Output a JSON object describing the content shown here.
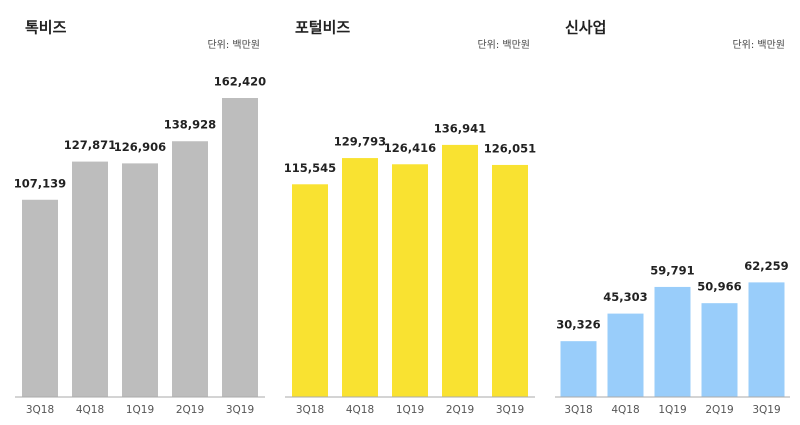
{
  "chart_data": [
    {
      "type": "bar",
      "title": "톡비즈",
      "subtitle": "단위: 백만원",
      "categories": [
        "3Q18",
        "4Q18",
        "1Q19",
        "2Q19",
        "3Q19"
      ],
      "values": [
        107139,
        127871,
        126906,
        138928,
        162420
      ],
      "value_labels": [
        "107,139",
        "127,871",
        "126,906",
        "138,928",
        "162,420"
      ],
      "color": "#bdbdbd"
    },
    {
      "type": "bar",
      "title": "포털비즈",
      "subtitle": "단위: 백만원",
      "categories": [
        "3Q18",
        "4Q18",
        "1Q19",
        "2Q19",
        "3Q19"
      ],
      "values": [
        115545,
        129793,
        126416,
        136941,
        126051
      ],
      "value_labels": [
        "115,545",
        "129,793",
        "126,416",
        "136,941",
        "126,051"
      ],
      "color": "#f9e231"
    },
    {
      "type": "bar",
      "title": "신사업",
      "subtitle": "단위: 백만원",
      "categories": [
        "3Q18",
        "4Q18",
        "1Q19",
        "2Q19",
        "3Q19"
      ],
      "values": [
        30326,
        45303,
        59791,
        50966,
        62259
      ],
      "value_labels": [
        "30,326",
        "45,303",
        "59,791",
        "50,966",
        "62,259"
      ],
      "color": "#99cdfa"
    }
  ]
}
